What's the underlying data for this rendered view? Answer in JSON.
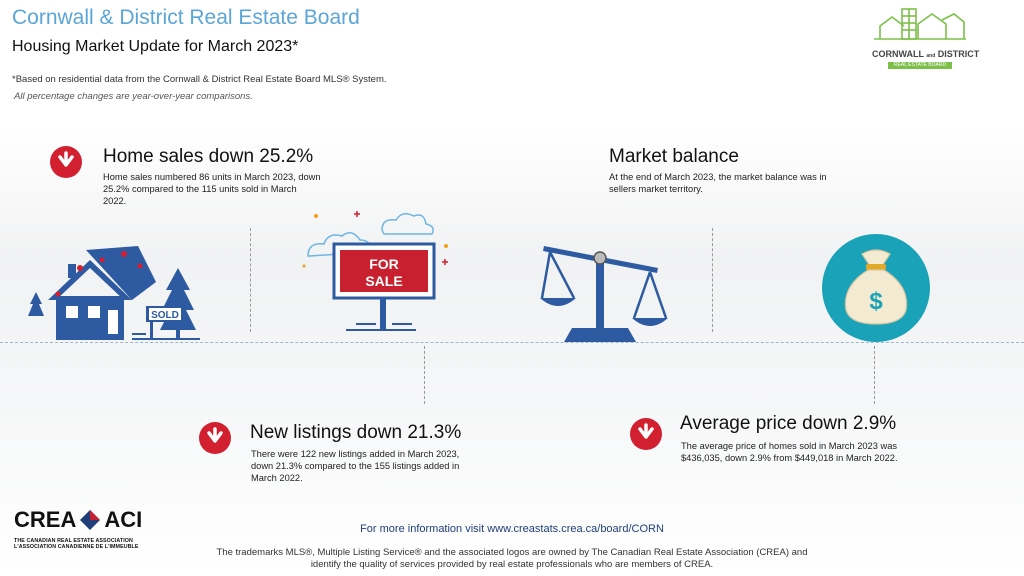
{
  "header": {
    "title": "Cornwall & District Real Estate Board",
    "subtitle": "Housing Market Update for March 2023*",
    "note_source": "*Based on residential data from the Cornwall & District Real Estate Board MLS® System.",
    "note_yoy": "All percentage changes are year-over-year comparisons."
  },
  "logo": {
    "line1": "CORNWALL",
    "and": "and",
    "line2": "DISTRICT",
    "tagline": "REAL ESTATE BOARD"
  },
  "stats": {
    "home_sales": {
      "heading": "Home sales down 25.2%",
      "text": "Home sales numbered 86 units in March 2023, down 25.2% compared to the 115 units sold in March 2022."
    },
    "market_balance": {
      "heading": "Market balance",
      "text": "At the end of March 2023, the market balance was in sellers market territory."
    },
    "new_listings": {
      "heading": "New listings down 21.3%",
      "text": "There were 122 new listings added in March 2023, down 21.3% compared to the 155 listings added in March 2022."
    },
    "avg_price": {
      "heading": "Average price down 2.9%",
      "text": "The average price of homes sold in March 2023 was $436,035, down 2.9% from $449,018 in March 2022."
    }
  },
  "illustrations": {
    "sold_sign": "SOLD",
    "for_sale_line1": "FOR",
    "for_sale_line2": "SALE",
    "money_symbol": "$"
  },
  "crea": {
    "name_en": "CREA",
    "name_fr": "ACI",
    "full_en": "THE CANADIAN REAL ESTATE ASSOCIATION",
    "full_fr": "L'ASSOCIATION CANADIENNE DE L'IMMEUBLE"
  },
  "footer": {
    "more_info": "For more information visit www.creastats.crea.ca/board/CORN",
    "trademark": "The trademarks MLS®, Multiple Listing Service® and the associated logos are owned by The Canadian Real Estate Association (CREA) and identify the quality of services provided by real estate professionals who are members of CREA."
  },
  "colors": {
    "title_blue": "#5aa6d8",
    "arrow_red": "#d22030",
    "house_blue": "#2d5aa0",
    "sign_red": "#c8202f",
    "money_teal": "#1aa3b8",
    "logo_green": "#7cc04a"
  }
}
